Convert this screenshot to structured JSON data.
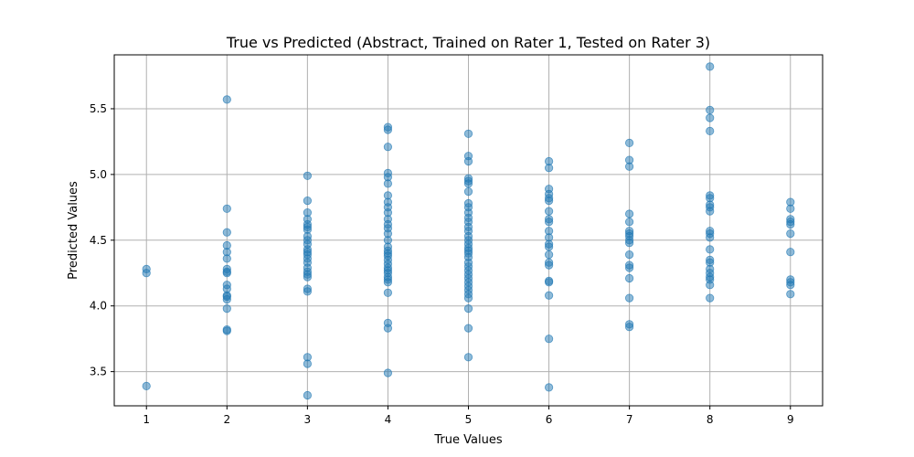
{
  "chart_data": {
    "type": "scatter",
    "title": "True vs Predicted (Abstract, Trained on Rater 1, Tested on Rater 3)",
    "xlabel": "True Values",
    "ylabel": "Predicted Values",
    "xlim": [
      0.6,
      9.4
    ],
    "ylim": [
      3.24,
      5.91
    ],
    "xticks": [
      1,
      2,
      3,
      4,
      5,
      6,
      7,
      8,
      9
    ],
    "yticks": [
      3.5,
      4.0,
      4.5,
      5.0,
      5.5
    ],
    "ytick_labels": [
      "3.5",
      "4.0",
      "4.5",
      "5.0",
      "5.5"
    ],
    "grid": true,
    "marker_color": "#1f77b4",
    "marker_alpha": 0.5,
    "points": [
      [
        1,
        4.28
      ],
      [
        1,
        4.25
      ],
      [
        1,
        3.39
      ],
      [
        2,
        5.57
      ],
      [
        2,
        4.74
      ],
      [
        2,
        4.56
      ],
      [
        2,
        4.46
      ],
      [
        2,
        4.41
      ],
      [
        2,
        4.36
      ],
      [
        2,
        4.28
      ],
      [
        2,
        4.26
      ],
      [
        2,
        4.25
      ],
      [
        2,
        4.16
      ],
      [
        2,
        4.13
      ],
      [
        2,
        4.08
      ],
      [
        2,
        4.07
      ],
      [
        2,
        4.05
      ],
      [
        2,
        3.98
      ],
      [
        2,
        3.82
      ],
      [
        2,
        3.81
      ],
      [
        3,
        4.99
      ],
      [
        3,
        4.8
      ],
      [
        3,
        4.71
      ],
      [
        3,
        4.66
      ],
      [
        3,
        4.62
      ],
      [
        3,
        4.6
      ],
      [
        3,
        4.58
      ],
      [
        3,
        4.53
      ],
      [
        3,
        4.5
      ],
      [
        3,
        4.47
      ],
      [
        3,
        4.43
      ],
      [
        3,
        4.41
      ],
      [
        3,
        4.39
      ],
      [
        3,
        4.36
      ],
      [
        3,
        4.33
      ],
      [
        3,
        4.29
      ],
      [
        3,
        4.26
      ],
      [
        3,
        4.24
      ],
      [
        3,
        4.22
      ],
      [
        3,
        4.13
      ],
      [
        3,
        4.11
      ],
      [
        3,
        3.61
      ],
      [
        3,
        3.56
      ],
      [
        3,
        3.32
      ],
      [
        4,
        5.36
      ],
      [
        4,
        5.34
      ],
      [
        4,
        5.21
      ],
      [
        4,
        5.01
      ],
      [
        4,
        4.98
      ],
      [
        4,
        4.93
      ],
      [
        4,
        4.84
      ],
      [
        4,
        4.79
      ],
      [
        4,
        4.75
      ],
      [
        4,
        4.71
      ],
      [
        4,
        4.66
      ],
      [
        4,
        4.62
      ],
      [
        4,
        4.59
      ],
      [
        4,
        4.55
      ],
      [
        4,
        4.5
      ],
      [
        4,
        4.45
      ],
      [
        4,
        4.42
      ],
      [
        4,
        4.4
      ],
      [
        4,
        4.38
      ],
      [
        4,
        4.35
      ],
      [
        4,
        4.32
      ],
      [
        4,
        4.29
      ],
      [
        4,
        4.27
      ],
      [
        4,
        4.25
      ],
      [
        4,
        4.22
      ],
      [
        4,
        4.2
      ],
      [
        4,
        4.18
      ],
      [
        4,
        4.1
      ],
      [
        4,
        3.87
      ],
      [
        4,
        3.83
      ],
      [
        4,
        3.49
      ],
      [
        5,
        5.31
      ],
      [
        5,
        5.14
      ],
      [
        5,
        5.1
      ],
      [
        5,
        4.97
      ],
      [
        5,
        4.95
      ],
      [
        5,
        4.93
      ],
      [
        5,
        4.87
      ],
      [
        5,
        4.78
      ],
      [
        5,
        4.75
      ],
      [
        5,
        4.71
      ],
      [
        5,
        4.67
      ],
      [
        5,
        4.64
      ],
      [
        5,
        4.6
      ],
      [
        5,
        4.57
      ],
      [
        5,
        4.53
      ],
      [
        5,
        4.5
      ],
      [
        5,
        4.47
      ],
      [
        5,
        4.44
      ],
      [
        5,
        4.42
      ],
      [
        5,
        4.4
      ],
      [
        5,
        4.37
      ],
      [
        5,
        4.33
      ],
      [
        5,
        4.3
      ],
      [
        5,
        4.27
      ],
      [
        5,
        4.24
      ],
      [
        5,
        4.21
      ],
      [
        5,
        4.18
      ],
      [
        5,
        4.15
      ],
      [
        5,
        4.12
      ],
      [
        5,
        4.09
      ],
      [
        5,
        4.06
      ],
      [
        5,
        3.98
      ],
      [
        5,
        3.83
      ],
      [
        5,
        3.61
      ],
      [
        6,
        5.1
      ],
      [
        6,
        5.05
      ],
      [
        6,
        4.89
      ],
      [
        6,
        4.85
      ],
      [
        6,
        4.82
      ],
      [
        6,
        4.8
      ],
      [
        6,
        4.72
      ],
      [
        6,
        4.66
      ],
      [
        6,
        4.64
      ],
      [
        6,
        4.57
      ],
      [
        6,
        4.52
      ],
      [
        6,
        4.47
      ],
      [
        6,
        4.45
      ],
      [
        6,
        4.39
      ],
      [
        6,
        4.33
      ],
      [
        6,
        4.31
      ],
      [
        6,
        4.19
      ],
      [
        6,
        4.18
      ],
      [
        6,
        4.08
      ],
      [
        6,
        3.75
      ],
      [
        6,
        3.38
      ],
      [
        7,
        5.24
      ],
      [
        7,
        5.11
      ],
      [
        7,
        5.06
      ],
      [
        7,
        4.7
      ],
      [
        7,
        4.64
      ],
      [
        7,
        4.57
      ],
      [
        7,
        4.55
      ],
      [
        7,
        4.53
      ],
      [
        7,
        4.5
      ],
      [
        7,
        4.48
      ],
      [
        7,
        4.39
      ],
      [
        7,
        4.31
      ],
      [
        7,
        4.29
      ],
      [
        7,
        4.21
      ],
      [
        7,
        4.06
      ],
      [
        7,
        3.86
      ],
      [
        7,
        3.84
      ],
      [
        8,
        5.82
      ],
      [
        8,
        5.49
      ],
      [
        8,
        5.43
      ],
      [
        8,
        5.33
      ],
      [
        8,
        4.84
      ],
      [
        8,
        4.82
      ],
      [
        8,
        4.77
      ],
      [
        8,
        4.75
      ],
      [
        8,
        4.72
      ],
      [
        8,
        4.57
      ],
      [
        8,
        4.55
      ],
      [
        8,
        4.52
      ],
      [
        8,
        4.43
      ],
      [
        8,
        4.35
      ],
      [
        8,
        4.33
      ],
      [
        8,
        4.28
      ],
      [
        8,
        4.25
      ],
      [
        8,
        4.22
      ],
      [
        8,
        4.2
      ],
      [
        8,
        4.16
      ],
      [
        8,
        4.06
      ],
      [
        9,
        4.79
      ],
      [
        9,
        4.74
      ],
      [
        9,
        4.66
      ],
      [
        9,
        4.64
      ],
      [
        9,
        4.62
      ],
      [
        9,
        4.55
      ],
      [
        9,
        4.41
      ],
      [
        9,
        4.2
      ],
      [
        9,
        4.18
      ],
      [
        9,
        4.16
      ],
      [
        9,
        4.09
      ]
    ]
  }
}
